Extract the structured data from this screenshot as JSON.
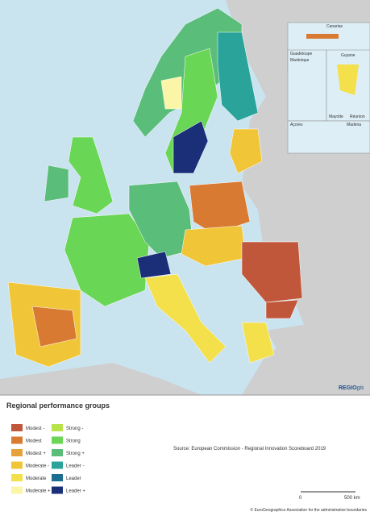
{
  "map": {
    "inset_labels": [
      "Canarias",
      "Guadeloupe",
      "Martinique",
      "Guyane",
      "Mayotte",
      "Réunion",
      "Açores",
      "Madeira"
    ],
    "brand": {
      "prefix": "REGIO",
      "suffix": "gis"
    }
  },
  "legend": {
    "title": "Regional performance groups",
    "items": [
      {
        "name": "Modest -",
        "color": "#c0573b"
      },
      {
        "name": "Modest",
        "color": "#d97a33"
      },
      {
        "name": "Modest +",
        "color": "#e5a23a"
      },
      {
        "name": "Moderate -",
        "color": "#f0c638"
      },
      {
        "name": "Moderate",
        "color": "#f3e04a"
      },
      {
        "name": "Moderate +",
        "color": "#fbf5a8"
      },
      {
        "name": "Strong -",
        "color": "#b9e34a"
      },
      {
        "name": "Strong",
        "color": "#6ad656"
      },
      {
        "name": "Strong +",
        "color": "#5bbd7a"
      },
      {
        "name": "Leader -",
        "color": "#2aa39a"
      },
      {
        "name": "Leader",
        "color": "#1b6e8f"
      },
      {
        "name": "Leader +",
        "color": "#1a2f78"
      }
    ]
  },
  "source": "Source: European Commission - Regional Innovation Scoreboard 2019",
  "scale": {
    "start": "0",
    "end": "500 km"
  },
  "copyright": "© EuroGeographics Association for the administrative boundaries"
}
